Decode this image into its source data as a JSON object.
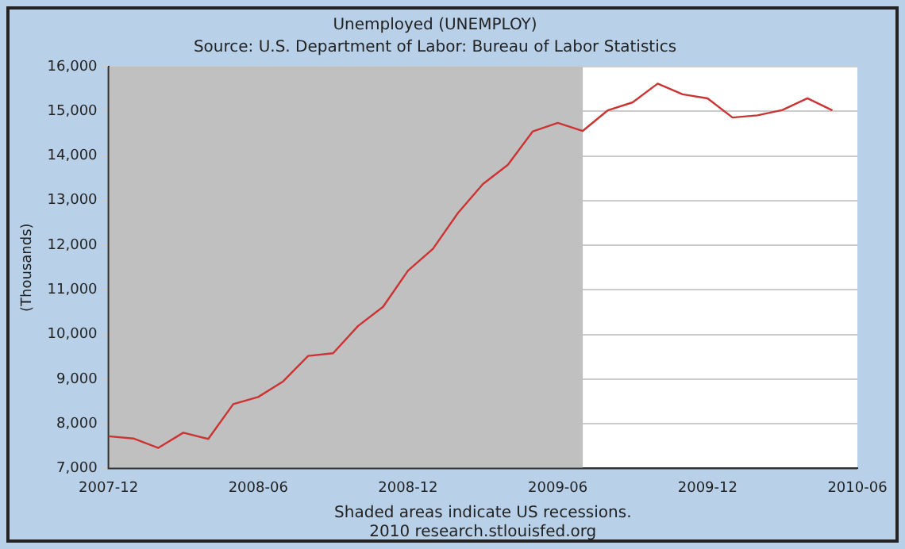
{
  "chart_data": {
    "type": "line",
    "title": "Unemployed (UNEMPLOY)",
    "subtitle": "Source: U.S. Department of Labor: Bureau of Labor Statistics",
    "ylabel": "(Thousands)",
    "annotations": [
      "Shaded areas indicate US recessions.",
      "2010 research.stlouisfed.org"
    ],
    "x": [
      "2007-12",
      "2008-01",
      "2008-02",
      "2008-03",
      "2008-04",
      "2008-05",
      "2008-06",
      "2008-07",
      "2008-08",
      "2008-09",
      "2008-10",
      "2008-11",
      "2008-12",
      "2009-01",
      "2009-02",
      "2009-03",
      "2009-04",
      "2009-05",
      "2009-06",
      "2009-07",
      "2009-08",
      "2009-09",
      "2009-10",
      "2009-11",
      "2009-12",
      "2010-01",
      "2010-02",
      "2010-03",
      "2010-04",
      "2010-05"
    ],
    "series": [
      {
        "color": "#cc3333",
        "values": [
          7720,
          7670,
          7460,
          7800,
          7660,
          8440,
          8600,
          8950,
          9520,
          9580,
          10190,
          10620,
          11430,
          11920,
          12720,
          13370,
          13800,
          14550,
          14740,
          14560,
          15020,
          15200,
          15620,
          15380,
          15290,
          14860,
          14910,
          15030,
          15290,
          15020
        ]
      }
    ],
    "xlim": [
      "2007-12",
      "2010-06"
    ],
    "xticks": [
      "2007-12",
      "2008-06",
      "2008-12",
      "2009-06",
      "2009-12",
      "2010-06"
    ],
    "ylim": [
      7000,
      16000
    ],
    "yticks": [
      {
        "value": 7000,
        "label": "7,000"
      },
      {
        "value": 8000,
        "label": "8,000"
      },
      {
        "value": 9000,
        "label": "9,000"
      },
      {
        "value": 10000,
        "label": "10,000"
      },
      {
        "value": 11000,
        "label": "11,000"
      },
      {
        "value": 12000,
        "label": "12,000"
      },
      {
        "value": 13000,
        "label": "13,000"
      },
      {
        "value": 14000,
        "label": "14,000"
      },
      {
        "value": 15000,
        "label": "15,000"
      },
      {
        "value": 16000,
        "label": "16,000"
      }
    ],
    "bands": [
      {
        "axis": "x",
        "from": "2007-12",
        "to": "2009-07",
        "color": "#c0c0c0"
      }
    ],
    "grid": "y",
    "legend": false,
    "marker": "none",
    "line_style": "solid"
  }
}
